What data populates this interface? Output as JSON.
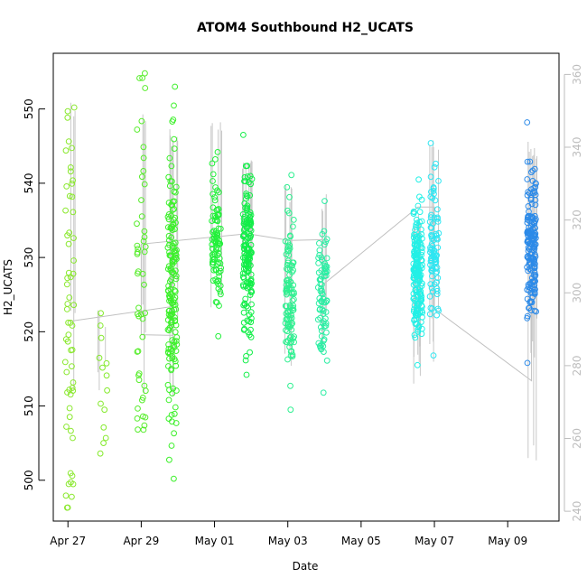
{
  "chart_data": {
    "type": "scatter",
    "title": "ATOM4 Southbound H2_UCATS",
    "xlabel": "Date",
    "ylabel": "H2_UCATS",
    "x_ticks": [
      "Apr 27",
      "Apr 29",
      "May 01",
      "May 03",
      "May 05",
      "May 07",
      "May 09"
    ],
    "y_left_ticks": [
      500,
      510,
      520,
      530,
      540,
      550
    ],
    "y_right_ticks": [
      240,
      260,
      280,
      300,
      320,
      340,
      360
    ],
    "xlim_days": [
      -0.4,
      13.4
    ],
    "ylim_left": [
      494.5,
      557.5
    ],
    "ylim_right": [
      237.3,
      365.8
    ],
    "grid": false,
    "colors": {
      "profile_line": "#c8c8c8",
      "track_line": "#c0c0c0",
      "right_axis": "#bdbdbd",
      "frame": "#000000"
    },
    "series": [
      {
        "x": 0.05,
        "range": [
          496.3,
          550.2
        ],
        "mean_dist": "wide",
        "color": "#8ae82e",
        "n": 60,
        "alt_range": [
          270,
          354
        ]
      },
      {
        "x": 0.95,
        "range": [
          503.6,
          522.5
        ],
        "mean_dist": "uniform",
        "color": "#84ea2c",
        "n": 14,
        "alt_range": [
          268,
          296
        ]
      },
      {
        "x": 2.0,
        "range": [
          506.8,
          554.8
        ],
        "mean_dist": "wide",
        "color": "#56ed2a",
        "n": 50,
        "alt_range": [
          270,
          350
        ]
      },
      {
        "x": 2.85,
        "range": [
          500.2,
          553.0
        ],
        "mean_dist": "center",
        "color": "#3cf02a",
        "n": 160,
        "alt_range": [
          268,
          345
        ]
      },
      {
        "x": 4.05,
        "range": [
          519.4,
          544.2
        ],
        "mean_dist": "center",
        "color": "#22f03a",
        "n": 90,
        "alt_range": [
          295,
          348
        ]
      },
      {
        "x": 4.9,
        "range": [
          514.2,
          546.5
        ],
        "mean_dist": "center",
        "color": "#12ee48",
        "n": 160,
        "alt_range": [
          292,
          340
        ]
      },
      {
        "x": 6.05,
        "range": [
          509.5,
          541.1
        ],
        "mean_dist": "center",
        "color": "#2ef090",
        "n": 110,
        "alt_range": [
          270,
          330
        ]
      },
      {
        "x": 6.95,
        "range": [
          511.8,
          537.6
        ],
        "mean_dist": "center",
        "color": "#2ceea4",
        "n": 80,
        "alt_range": [
          282,
          328
        ]
      },
      {
        "x": 9.55,
        "range": [
          515.5,
          540.5
        ],
        "mean_dist": "center",
        "color": "#22f0e6",
        "n": 180,
        "alt_range": [
          272,
          322
        ]
      },
      {
        "x": 10.0,
        "range": [
          516.8,
          545.4
        ],
        "mean_dist": "center",
        "color": "#2ee6f2",
        "n": 90,
        "alt_range": [
          276,
          342
        ]
      },
      {
        "x": 12.65,
        "range": [
          515.8,
          548.2
        ],
        "mean_dist": "center",
        "color": "#2c8ae8",
        "n": 170,
        "alt_range": [
          244,
          342
        ]
      }
    ],
    "track": [
      [
        0.05,
        521.4
      ],
      [
        2.85,
        523.4
      ],
      [
        2.85,
        519.5
      ],
      [
        2.0,
        519.6
      ],
      [
        2.0,
        531.8
      ],
      [
        4.9,
        533.2
      ],
      [
        6.05,
        532.3
      ],
      [
        6.95,
        532.4
      ],
      [
        6.95,
        526.3
      ],
      [
        9.55,
        536.8
      ],
      [
        10.0,
        536.8
      ],
      [
        10.0,
        523.1
      ],
      [
        12.65,
        513.4
      ],
      [
        12.65,
        524.5
      ]
    ]
  }
}
